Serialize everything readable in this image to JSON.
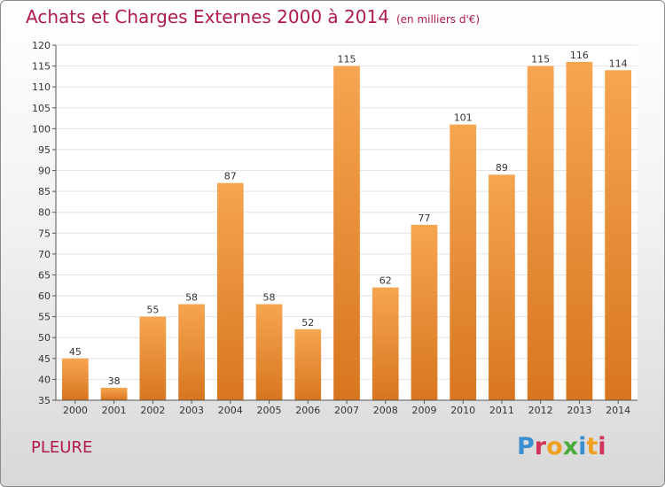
{
  "header": {
    "title": "Achats et Charges Externes 2000 à 2014",
    "subtitle": "(en milliers d'€)"
  },
  "footer": {
    "location": "PLEURE",
    "logo_text": "Proxiti",
    "logo_colors": [
      "#3a8fd0",
      "#d0345a",
      "#f0a020",
      "#4aaa3c",
      "#3a8fd0",
      "#f0a020",
      "#d0345a"
    ]
  },
  "colors": {
    "bar_light": "#f6a551",
    "bar_dark": "#d8761f",
    "title": "#b01a4f",
    "grid": "#e2e2e2"
  },
  "chart_data": {
    "type": "bar",
    "categories": [
      "2000",
      "2001",
      "2002",
      "2003",
      "2004",
      "2005",
      "2006",
      "2007",
      "2008",
      "2009",
      "2010",
      "2011",
      "2012",
      "2013",
      "2014"
    ],
    "values": [
      45,
      38,
      55,
      58,
      87,
      58,
      52,
      115,
      62,
      77,
      101,
      89,
      115,
      116,
      114
    ],
    "value_labels": [
      "45",
      "38",
      "55",
      "58",
      "87",
      "58",
      "52",
      "115",
      "62",
      "77",
      "101",
      "89",
      "115",
      "116",
      "114"
    ],
    "title": "Achats et Charges Externes 2000 à 2014",
    "xlabel": "",
    "ylabel": "",
    "ylim": [
      35,
      120
    ],
    "yticks": [
      35,
      40,
      45,
      50,
      55,
      60,
      65,
      70,
      75,
      80,
      85,
      90,
      95,
      100,
      105,
      110,
      115,
      120
    ],
    "grid": true,
    "legend": "none"
  }
}
